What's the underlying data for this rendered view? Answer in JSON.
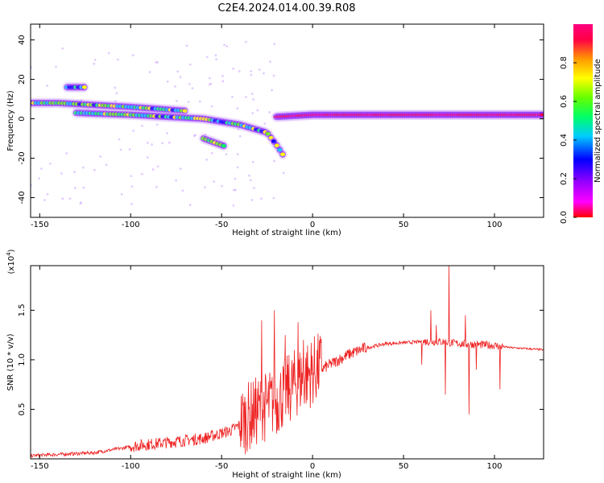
{
  "title": "C2E4.2024.014.00.39.R08",
  "chart_data": [
    {
      "type": "heatmap",
      "xlabel": "Height of straight line (km)",
      "ylabel": "Frequency (Hz)",
      "xlim": [
        -155,
        127
      ],
      "ylim": [
        -50,
        48
      ],
      "xticks": [
        -150,
        -100,
        -50,
        0,
        50,
        100
      ],
      "yticks": [
        -40,
        -20,
        0,
        20,
        40
      ],
      "colorbar": {
        "label": "Normalized spectral amplitude",
        "range": [
          0,
          1
        ],
        "ticks": [
          "0.0",
          "0.2",
          "0.4",
          "0.6",
          "0.8"
        ],
        "colormap": [
          "#ff0000",
          "#ff00ff",
          "#9900ff",
          "#0000ff",
          "#00ccff",
          "#00ff66",
          "#66ff00",
          "#ffff00",
          "#ff9900",
          "#ff0044",
          "#ff0080"
        ]
      },
      "ridges": [
        {
          "x": [
            -155,
            -140,
            -120,
            -100,
            -85,
            -70
          ],
          "freq": [
            8,
            8,
            7,
            6,
            5,
            4
          ]
        },
        {
          "x": [
            -130,
            -100,
            -80,
            -60,
            -40,
            -25,
            -20,
            -15
          ],
          "freq": [
            3,
            2,
            1,
            0,
            -3,
            -7,
            -13,
            -20
          ]
        },
        {
          "x": [
            -20,
            0,
            20,
            50,
            80,
            100,
            127
          ],
          "freq": [
            1,
            2,
            2,
            2,
            2,
            2,
            2
          ]
        },
        {
          "x": [
            -135,
            -125
          ],
          "freq": [
            16,
            16
          ]
        },
        {
          "x": [
            -60,
            -48
          ],
          "freq": [
            -10,
            -14
          ]
        }
      ]
    },
    {
      "type": "line",
      "xlabel": "Height of straight line (km)",
      "ylabel": "SNR (10 * v/v)",
      "multiplier_label": "(x10",
      "multiplier_exp": "4",
      "xlim": [
        -155,
        127
      ],
      "ylim": [
        0,
        1.95
      ],
      "xticks": [
        -150,
        -100,
        -50,
        0,
        50,
        100
      ],
      "yticks": [
        0.5,
        1.0,
        1.5
      ],
      "ytick_labels": [
        "0.5",
        "1.0",
        "1.5"
      ],
      "series": [
        {
          "color": "#ee2222",
          "trend": {
            "x": [
              -155,
              -120,
              -100,
              -80,
              -60,
              -45,
              -30,
              -20,
              -10,
              0,
              10,
              20,
              30,
              40,
              50,
              60,
              70,
              80,
              90,
              100,
              110,
              127
            ],
            "y": [
              0.03,
              0.06,
              0.12,
              0.16,
              0.2,
              0.28,
              0.45,
              0.55,
              0.72,
              0.85,
              0.95,
              1.05,
              1.12,
              1.16,
              1.17,
              1.18,
              1.18,
              1.16,
              1.15,
              1.14,
              1.12,
              1.1
            ]
          },
          "spikes": [
            {
              "x": 75,
              "y": 1.95
            },
            {
              "x": 73,
              "y": 0.65
            },
            {
              "x": 65,
              "y": 1.5
            },
            {
              "x": 86,
              "y": 0.45
            },
            {
              "x": 84,
              "y": 1.45
            },
            {
              "x": 103,
              "y": 0.7
            },
            {
              "x": -21,
              "y": 1.5
            },
            {
              "x": -28,
              "y": 1.4
            },
            {
              "x": -15,
              "y": 1.25
            },
            {
              "x": -8,
              "y": 1.38
            },
            {
              "x": -5,
              "y": 1.2
            },
            {
              "x": 60,
              "y": 0.95
            },
            {
              "x": 90,
              "y": 0.9
            },
            {
              "x": 68,
              "y": 1.35
            }
          ]
        }
      ]
    }
  ]
}
